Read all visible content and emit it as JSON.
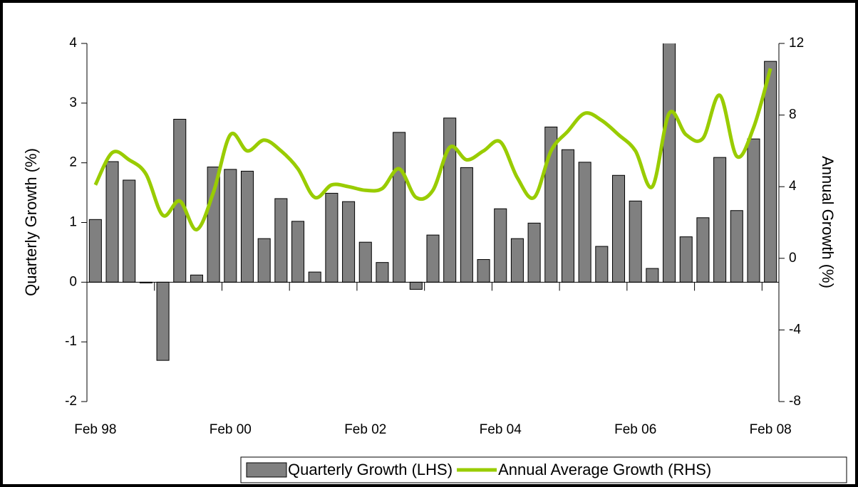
{
  "chart_data": {
    "type": "bar-line",
    "categories": [
      "Feb 98",
      null,
      null,
      null,
      null,
      null,
      null,
      null,
      "Feb 00",
      null,
      null,
      null,
      null,
      null,
      null,
      null,
      "Feb 02",
      null,
      null,
      null,
      null,
      null,
      null,
      null,
      "Feb 04",
      null,
      null,
      null,
      null,
      null,
      null,
      null,
      "Feb 06",
      null,
      null,
      null,
      null,
      null,
      null,
      null,
      "Feb 08"
    ],
    "ylabel": "Quarterly Growth (%)",
    "y2label": "Annual Growth (%)",
    "ylim": [
      -2,
      4
    ],
    "yticks": [
      -2,
      -1,
      0,
      1,
      2,
      3,
      4
    ],
    "y2lim": [
      -8,
      12
    ],
    "y2ticks": [
      -8,
      -4,
      0,
      4,
      8,
      12
    ],
    "legend": "bottom-right",
    "series": [
      {
        "name": "Quarterly Growth (LHS)",
        "type": "bar",
        "color": "#808080",
        "axis": "y",
        "values": [
          1.05,
          2.02,
          1.71,
          -0.01,
          -1.31,
          2.73,
          0.12,
          1.93,
          1.89,
          1.86,
          0.73,
          1.4,
          1.02,
          0.17,
          1.49,
          1.35,
          0.67,
          0.33,
          2.51,
          -0.12,
          0.79,
          2.75,
          1.92,
          0.38,
          1.23,
          0.73,
          0.99,
          2.6,
          2.22,
          2.01,
          0.6,
          1.79,
          1.36,
          0.23,
          4.05,
          0.76,
          1.08,
          2.09,
          1.2,
          2.4,
          3.7
        ]
      },
      {
        "name": "Annual Average Growth (RHS)",
        "type": "line",
        "color": "#99cc00",
        "axis": "y2",
        "values": [
          4.1,
          5.9,
          5.5,
          4.7,
          2.4,
          3.2,
          1.6,
          3.7,
          6.9,
          6.0,
          6.6,
          6.0,
          5.0,
          3.4,
          4.1,
          4.0,
          3.8,
          3.9,
          5.0,
          3.4,
          3.8,
          6.2,
          5.5,
          6.0,
          6.5,
          4.5,
          3.4,
          6.0,
          7.1,
          8.1,
          7.7,
          6.9,
          6.0,
          4.0,
          8.1,
          6.9,
          6.7,
          9.1,
          5.7,
          7.3,
          10.6
        ]
      }
    ]
  }
}
